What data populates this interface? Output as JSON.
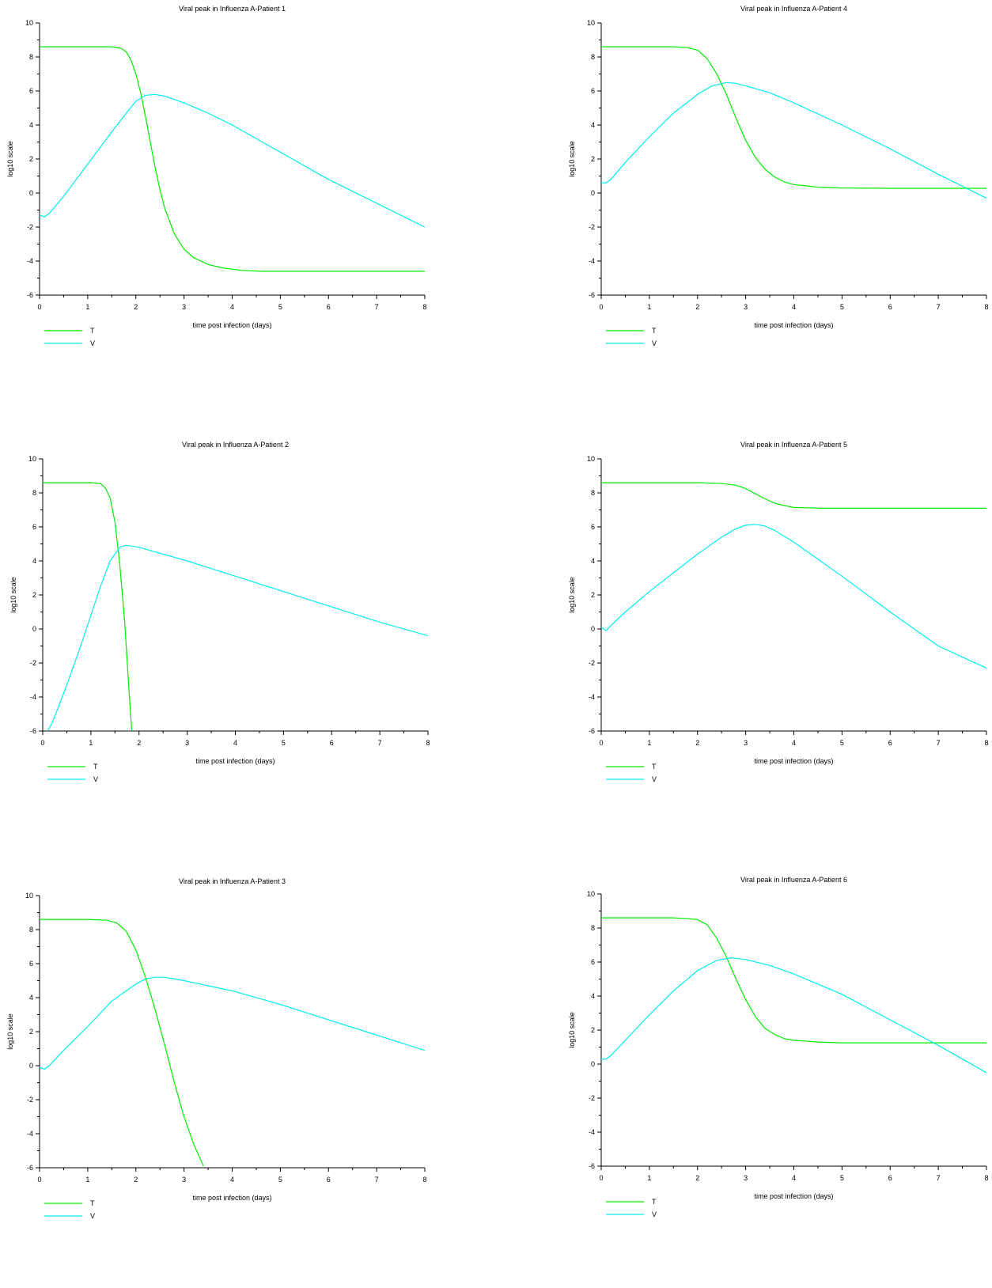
{
  "chart_data": [
    {
      "type": "line",
      "title": "Viral peak in Influenza A-Patient 1",
      "xlabel": "time post infection (days)",
      "ylabel": "log10 scale",
      "xlim": [
        0,
        8
      ],
      "ylim": [
        -6,
        10
      ],
      "xticks": [
        "0",
        "1",
        "2",
        "3",
        "4",
        "5",
        "6",
        "7",
        "8"
      ],
      "yticks": [
        "-6",
        "-4",
        "-2",
        "0",
        "2",
        "4",
        "6",
        "8",
        "10"
      ],
      "legend": [
        "T",
        "V"
      ],
      "series": [
        {
          "name": "T",
          "color": "#00ee00",
          "x": [
            0,
            0.5,
            1.0,
            1.5,
            1.7,
            1.8,
            1.9,
            2.0,
            2.1,
            2.2,
            2.3,
            2.4,
            2.5,
            2.6,
            2.8,
            3.0,
            3.2,
            3.5,
            3.8,
            4.2,
            4.6,
            5.0,
            6.0,
            7.0,
            8.0
          ],
          "y": [
            8.6,
            8.6,
            8.6,
            8.6,
            8.5,
            8.3,
            7.8,
            7.0,
            5.9,
            4.5,
            3.0,
            1.5,
            0.2,
            -0.9,
            -2.4,
            -3.3,
            -3.8,
            -4.2,
            -4.4,
            -4.55,
            -4.6,
            -4.6,
            -4.6,
            -4.6,
            -4.6
          ]
        },
        {
          "name": "V",
          "color": "#00eeee",
          "x": [
            0,
            0.1,
            0.2,
            0.5,
            1.0,
            1.5,
            1.8,
            2.0,
            2.2,
            2.4,
            2.6,
            3.0,
            3.5,
            4.0,
            5.0,
            6.0,
            7.0,
            8.0
          ],
          "y": [
            -1.3,
            -1.4,
            -1.2,
            -0.2,
            1.7,
            3.6,
            4.7,
            5.4,
            5.75,
            5.8,
            5.7,
            5.3,
            4.7,
            4.0,
            2.4,
            0.8,
            -0.6,
            -2.0
          ]
        }
      ]
    },
    {
      "type": "line",
      "title": "Viral peak in Influenza A-Patient 4",
      "xlabel": "time post infection (days)",
      "ylabel": "log10 scale",
      "xlim": [
        0,
        8
      ],
      "ylim": [
        -6,
        10
      ],
      "xticks": [
        "0",
        "1",
        "2",
        "3",
        "4",
        "5",
        "6",
        "7",
        "8"
      ],
      "yticks": [
        "-6",
        "-4",
        "-2",
        "0",
        "2",
        "4",
        "6",
        "8",
        "10"
      ],
      "legend": [
        "T",
        "V"
      ],
      "series": [
        {
          "name": "T",
          "color": "#00ee00",
          "x": [
            0,
            1.0,
            1.5,
            1.8,
            2.0,
            2.2,
            2.4,
            2.6,
            2.8,
            3.0,
            3.2,
            3.4,
            3.6,
            3.8,
            4.0,
            4.5,
            5.0,
            6.0,
            7.0,
            8.0
          ],
          "y": [
            8.6,
            8.6,
            8.6,
            8.55,
            8.4,
            7.9,
            7.0,
            5.8,
            4.4,
            3.1,
            2.1,
            1.4,
            0.95,
            0.65,
            0.5,
            0.35,
            0.3,
            0.28,
            0.28,
            0.28
          ]
        },
        {
          "name": "V",
          "color": "#00eeee",
          "x": [
            0,
            0.1,
            0.2,
            0.5,
            1.0,
            1.5,
            2.0,
            2.3,
            2.6,
            2.8,
            3.0,
            3.5,
            4.0,
            5.0,
            6.0,
            7.0,
            8.0
          ],
          "y": [
            0.6,
            0.6,
            0.8,
            1.8,
            3.3,
            4.7,
            5.8,
            6.3,
            6.5,
            6.45,
            6.3,
            5.9,
            5.3,
            4.0,
            2.6,
            1.1,
            -0.3
          ]
        }
      ]
    },
    {
      "type": "line",
      "title": "Viral peak in Influenza A-Patient 2",
      "xlabel": "time post infection (days)",
      "ylabel": "log10 scale",
      "xlim": [
        0,
        8
      ],
      "ylim": [
        -6,
        10
      ],
      "xticks": [
        "0",
        "1",
        "2",
        "3",
        "4",
        "5",
        "6",
        "7",
        "8"
      ],
      "yticks": [
        "-6",
        "-4",
        "-2",
        "0",
        "2",
        "4",
        "6",
        "8",
        "10"
      ],
      "legend": [
        "T",
        "V"
      ],
      "series": [
        {
          "name": "T",
          "color": "#00ee00",
          "x": [
            0,
            0.5,
            1.0,
            1.2,
            1.3,
            1.4,
            1.5,
            1.6,
            1.7,
            1.8,
            1.85
          ],
          "y": [
            8.6,
            8.6,
            8.6,
            8.55,
            8.3,
            7.7,
            6.3,
            3.8,
            0.5,
            -4.0,
            -6.0
          ]
        },
        {
          "name": "V",
          "color": "#00eeee",
          "x": [
            0.1,
            0.2,
            0.5,
            0.8,
            1.0,
            1.2,
            1.4,
            1.6,
            1.7,
            1.8,
            2.0,
            2.5,
            3.0,
            4.0,
            5.0,
            6.0,
            7.0,
            8.0
          ],
          "y": [
            -6.0,
            -5.5,
            -3.3,
            -0.9,
            0.8,
            2.5,
            4.0,
            4.8,
            4.9,
            4.9,
            4.8,
            4.4,
            4.0,
            3.1,
            2.2,
            1.3,
            0.4,
            -0.4
          ]
        }
      ]
    },
    {
      "type": "line",
      "title": "Viral peak in Influenza A-Patient 5",
      "xlabel": "time post infection (days)",
      "ylabel": "log10 scale",
      "xlim": [
        0,
        8
      ],
      "ylim": [
        -6,
        10
      ],
      "xticks": [
        "0",
        "1",
        "2",
        "3",
        "4",
        "5",
        "6",
        "7",
        "8"
      ],
      "yticks": [
        "-6",
        "-4",
        "-2",
        "0",
        "2",
        "4",
        "6",
        "8",
        "10"
      ],
      "legend": [
        "T",
        "V"
      ],
      "series": [
        {
          "name": "T",
          "color": "#00ee00",
          "x": [
            0,
            1.0,
            2.0,
            2.5,
            2.8,
            3.0,
            3.2,
            3.4,
            3.6,
            3.8,
            4.0,
            4.3,
            4.6,
            5.0,
            6.0,
            7.0,
            8.0
          ],
          "y": [
            8.6,
            8.6,
            8.6,
            8.55,
            8.45,
            8.25,
            7.95,
            7.65,
            7.4,
            7.25,
            7.15,
            7.12,
            7.1,
            7.1,
            7.1,
            7.1,
            7.1
          ]
        },
        {
          "name": "V",
          "color": "#00eeee",
          "x": [
            0,
            0.1,
            0.2,
            0.5,
            1.0,
            1.5,
            2.0,
            2.5,
            2.8,
            3.0,
            3.2,
            3.4,
            3.6,
            4.0,
            4.5,
            5.0,
            6.0,
            7.0,
            8.0
          ],
          "y": [
            0.1,
            -0.1,
            0.2,
            1.0,
            2.2,
            3.3,
            4.4,
            5.4,
            5.9,
            6.1,
            6.15,
            6.05,
            5.8,
            5.1,
            4.1,
            3.1,
            1.0,
            -1.0,
            -2.3
          ]
        }
      ]
    },
    {
      "type": "line",
      "title": "Viral peak in Influenza A-Patient 3",
      "xlabel": "time post infection (days)",
      "ylabel": "log10 scale",
      "xlim": [
        0,
        8
      ],
      "ylim": [
        -6,
        10
      ],
      "xticks": [
        "0",
        "1",
        "2",
        "3",
        "4",
        "5",
        "6",
        "7",
        "8"
      ],
      "yticks": [
        "-6",
        "-4",
        "-2",
        "0",
        "2",
        "4",
        "6",
        "8",
        "10"
      ],
      "legend": [
        "T",
        "V"
      ],
      "series": [
        {
          "name": "T",
          "color": "#00ee00",
          "x": [
            0,
            1.0,
            1.4,
            1.6,
            1.8,
            2.0,
            2.2,
            2.4,
            2.6,
            2.8,
            3.0,
            3.2,
            3.4
          ],
          "y": [
            8.6,
            8.6,
            8.55,
            8.4,
            7.9,
            6.8,
            5.2,
            3.3,
            1.2,
            -1.0,
            -3.0,
            -4.6,
            -5.9
          ]
        },
        {
          "name": "V",
          "color": "#00eeee",
          "x": [
            0,
            0.1,
            0.2,
            0.5,
            1.0,
            1.5,
            2.0,
            2.2,
            2.4,
            2.6,
            3.0,
            3.5,
            4.0,
            5.0,
            6.0,
            7.0,
            8.0
          ],
          "y": [
            -0.1,
            -0.2,
            0.0,
            0.9,
            2.3,
            3.8,
            4.8,
            5.1,
            5.2,
            5.2,
            5.0,
            4.7,
            4.4,
            3.6,
            2.7,
            1.8,
            0.9
          ]
        }
      ]
    },
    {
      "type": "line",
      "title": "Viral peak in Influenza A-Patient 6",
      "xlabel": "time post infection (days)",
      "ylabel": "log10 scale",
      "xlim": [
        0,
        8
      ],
      "ylim": [
        -6,
        10
      ],
      "xticks": [
        "0",
        "1",
        "2",
        "3",
        "4",
        "5",
        "6",
        "7",
        "8"
      ],
      "yticks": [
        "-6",
        "-4",
        "-2",
        "0",
        "2",
        "4",
        "6",
        "8",
        "10"
      ],
      "legend": [
        "T",
        "V"
      ],
      "series": [
        {
          "name": "T",
          "color": "#00ee00",
          "x": [
            0,
            1.0,
            1.5,
            1.8,
            2.0,
            2.2,
            2.4,
            2.6,
            2.8,
            3.0,
            3.2,
            3.4,
            3.6,
            3.8,
            4.0,
            4.5,
            5.0,
            6.0,
            7.0,
            8.0
          ],
          "y": [
            8.6,
            8.6,
            8.6,
            8.55,
            8.5,
            8.2,
            7.4,
            6.3,
            5.0,
            3.8,
            2.8,
            2.1,
            1.75,
            1.5,
            1.4,
            1.3,
            1.25,
            1.25,
            1.25,
            1.25
          ]
        },
        {
          "name": "V",
          "color": "#00eeee",
          "x": [
            0,
            0.1,
            0.2,
            0.5,
            1.0,
            1.5,
            2.0,
            2.4,
            2.7,
            3.0,
            3.5,
            4.0,
            5.0,
            6.0,
            7.0,
            8.0
          ],
          "y": [
            0.3,
            0.3,
            0.5,
            1.4,
            2.9,
            4.3,
            5.5,
            6.1,
            6.25,
            6.15,
            5.8,
            5.3,
            4.1,
            2.6,
            1.1,
            -0.5
          ]
        }
      ]
    }
  ]
}
